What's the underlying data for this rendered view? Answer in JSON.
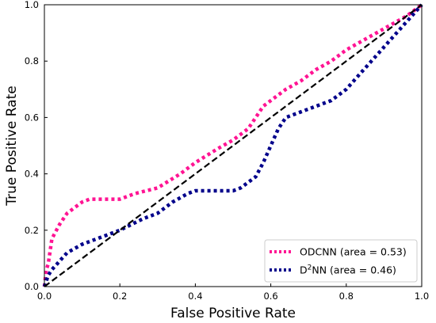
{
  "chart_data": {
    "type": "line",
    "title": "",
    "xlabel": "False Positive Rate",
    "ylabel": "True Positive Rate",
    "xlim": [
      0,
      1
    ],
    "ylim": [
      0,
      1
    ],
    "xticks": [
      0.0,
      0.2,
      0.4,
      0.6,
      0.8,
      1.0
    ],
    "yticks": [
      0.0,
      0.2,
      0.4,
      0.6,
      0.8,
      1.0
    ],
    "xtick_labels": [
      "0.0",
      "0.2",
      "0.4",
      "0.6",
      "0.8",
      "1.0"
    ],
    "ytick_labels": [
      "0.0",
      "0.2",
      "0.4",
      "0.6",
      "0.8",
      "1.0"
    ],
    "grid": false,
    "legend_position": "lower right",
    "series": [
      {
        "name": "ODCNN (area = 0.53)",
        "name_main": "ODCNN (area = 0.53)",
        "name_sup": "",
        "name_rest": "",
        "color": "#ff1493",
        "style": "dotted",
        "x": [
          0.0,
          0.005,
          0.01,
          0.02,
          0.04,
          0.06,
          0.08,
          0.1,
          0.12,
          0.2,
          0.24,
          0.3,
          0.36,
          0.4,
          0.46,
          0.5,
          0.54,
          0.56,
          0.58,
          0.6,
          0.64,
          0.68,
          0.72,
          0.76,
          0.8,
          0.84,
          0.88,
          0.92,
          0.96,
          1.0
        ],
        "y": [
          0.0,
          0.06,
          0.08,
          0.17,
          0.22,
          0.26,
          0.28,
          0.3,
          0.31,
          0.31,
          0.33,
          0.35,
          0.4,
          0.44,
          0.49,
          0.52,
          0.56,
          0.6,
          0.64,
          0.66,
          0.7,
          0.73,
          0.77,
          0.8,
          0.84,
          0.87,
          0.9,
          0.93,
          0.96,
          1.0
        ]
      },
      {
        "name": "D2NN (area = 0.46)",
        "name_main": "D",
        "name_sup": "2",
        "name_rest": "NN (area = 0.46)",
        "color": "#00008b",
        "style": "dotted",
        "x": [
          0.0,
          0.01,
          0.02,
          0.04,
          0.06,
          0.1,
          0.14,
          0.2,
          0.26,
          0.3,
          0.34,
          0.38,
          0.4,
          0.46,
          0.5,
          0.52,
          0.56,
          0.58,
          0.6,
          0.62,
          0.64,
          0.66,
          0.7,
          0.76,
          0.8,
          0.84,
          0.88,
          0.92,
          0.96,
          1.0
        ],
        "y": [
          0.0,
          0.04,
          0.06,
          0.09,
          0.12,
          0.15,
          0.17,
          0.2,
          0.24,
          0.26,
          0.3,
          0.33,
          0.34,
          0.34,
          0.34,
          0.35,
          0.39,
          0.44,
          0.5,
          0.56,
          0.6,
          0.61,
          0.63,
          0.66,
          0.7,
          0.76,
          0.82,
          0.88,
          0.94,
          1.0
        ]
      },
      {
        "name": "",
        "color": "#000000",
        "style": "dashed",
        "x": [
          0,
          1
        ],
        "y": [
          0,
          1
        ]
      }
    ]
  }
}
